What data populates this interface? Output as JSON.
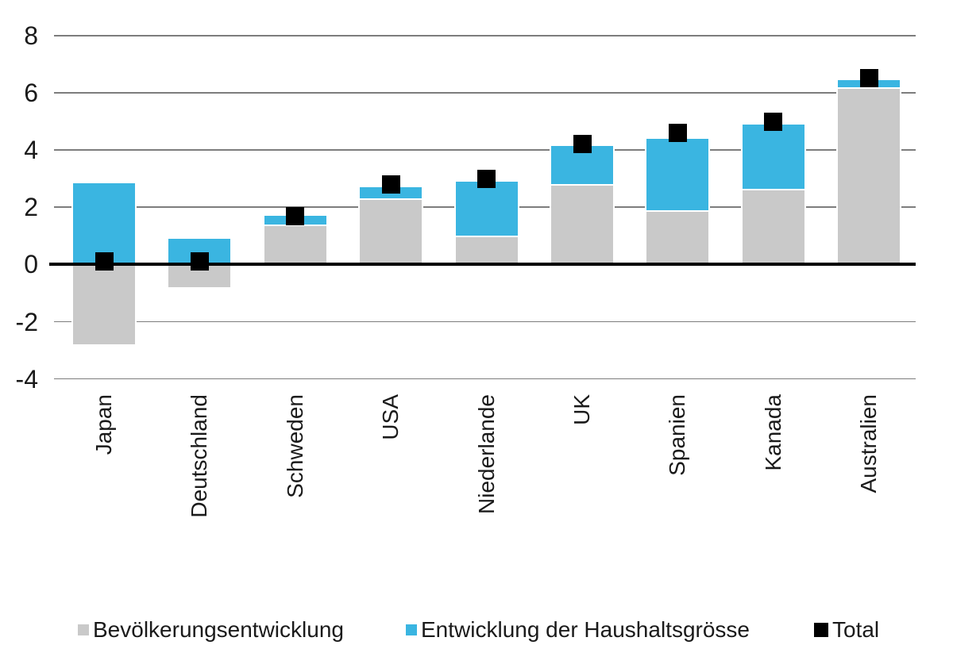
{
  "chart_data": {
    "type": "bar",
    "stacked": true,
    "title": "",
    "xlabel": "",
    "ylabel": "",
    "categories": [
      "Japan",
      "Deutschland",
      "Schweden",
      "USA",
      "Niederlande",
      "UK",
      "Spanien",
      "Kanada",
      "Australien"
    ],
    "series": [
      {
        "name": "Bevölkerungsentwicklung",
        "type": "stacked-bar",
        "color": "#C9C9C9",
        "values": [
          -2.8,
          -0.8,
          1.4,
          2.3,
          1.0,
          2.8,
          1.9,
          2.65,
          6.2
        ]
      },
      {
        "name": "Entwicklung der Haushaltsgrösse",
        "type": "stacked-bar",
        "color": "#3AB5E1",
        "values": [
          2.85,
          0.9,
          0.3,
          0.4,
          1.9,
          1.35,
          2.5,
          2.25,
          0.25
        ]
      },
      {
        "name": "Total",
        "type": "square-marker",
        "color": "#000000",
        "values": [
          0.1,
          0.1,
          1.7,
          2.8,
          3.0,
          4.2,
          4.6,
          5.0,
          6.5
        ]
      }
    ],
    "ylim": [
      -4,
      8
    ],
    "yticks": [
      8,
      6,
      4,
      2,
      0,
      -2,
      -4
    ],
    "grid": true,
    "gridline_color": "#7d7d7d",
    "zero_line_color": "#000000",
    "legend_position": "bottom"
  }
}
